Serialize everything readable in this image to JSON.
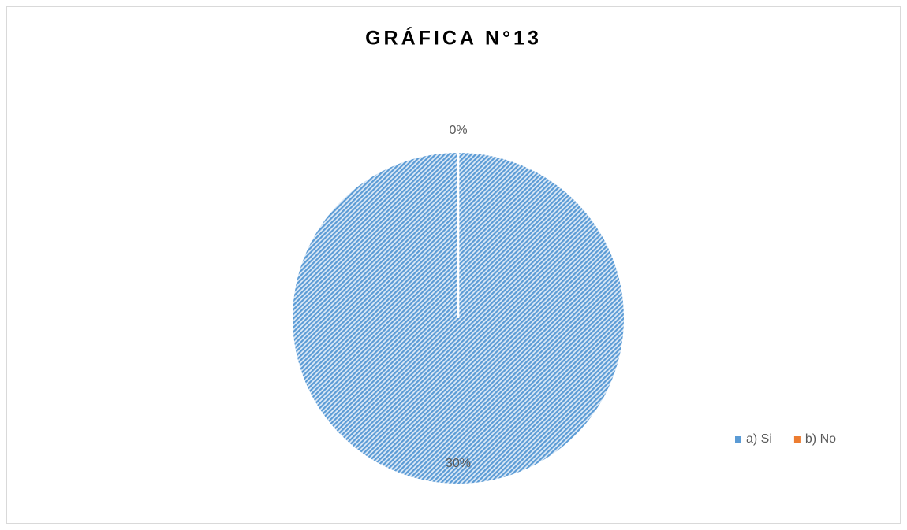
{
  "chart_data": {
    "type": "pie",
    "title": "GRÁFICA N°13",
    "categories": [
      "a) Si",
      "b) No"
    ],
    "values": [
      30,
      0
    ],
    "value_labels": [
      "30%",
      "0%"
    ],
    "colors": [
      "#5b9bd5",
      "#ed7d31"
    ],
    "fill_pattern": "diagonal-hatch",
    "legend": "right"
  }
}
